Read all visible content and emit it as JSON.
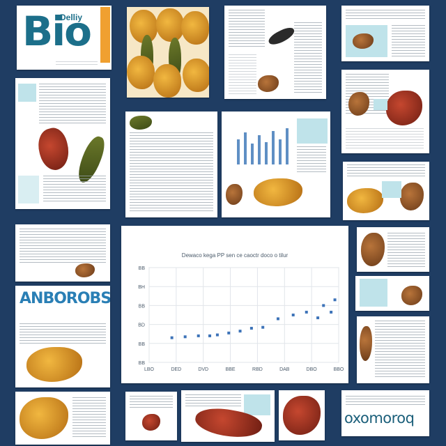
{
  "poster": {
    "title": "Bio",
    "title_badge": "Delliy",
    "bottom_logo": "oxomoroq",
    "swirl_title": "ANBOROBS"
  },
  "chart_data": {
    "type": "scatter",
    "title": "Dewaco kega PP sen ce caoctr doco o tilur",
    "xlabel": "",
    "ylabel": "",
    "x_tick_labels": [
      "LBO",
      "DED",
      "DVD",
      "BBE",
      "RBD",
      "DAB",
      "DBO",
      "BBO"
    ],
    "y_tick_labels": [
      "BB",
      "BB",
      "BD",
      "BB",
      "BH",
      "BB"
    ],
    "xlim": [
      0,
      10
    ],
    "ylim": [
      0,
      10
    ],
    "grid": true,
    "series": [
      {
        "points": [
          [
            1.2,
            2.6
          ],
          [
            1.9,
            2.7
          ],
          [
            2.6,
            2.8
          ],
          [
            3.2,
            2.8
          ],
          [
            3.6,
            2.9
          ],
          [
            4.2,
            3.1
          ],
          [
            4.8,
            3.3
          ],
          [
            5.4,
            3.6
          ],
          [
            6.0,
            3.7
          ],
          [
            6.8,
            4.6
          ],
          [
            7.6,
            5.0
          ],
          [
            8.3,
            5.3
          ],
          [
            8.9,
            4.7
          ],
          [
            9.2,
            6.0
          ],
          [
            9.6,
            5.3
          ],
          [
            9.8,
            6.6
          ]
        ],
        "color": "#3d73b8"
      }
    ]
  },
  "colors": {
    "background": "#1f3d63",
    "accent": "#1c6f8a",
    "marker": "#3d73b8"
  }
}
